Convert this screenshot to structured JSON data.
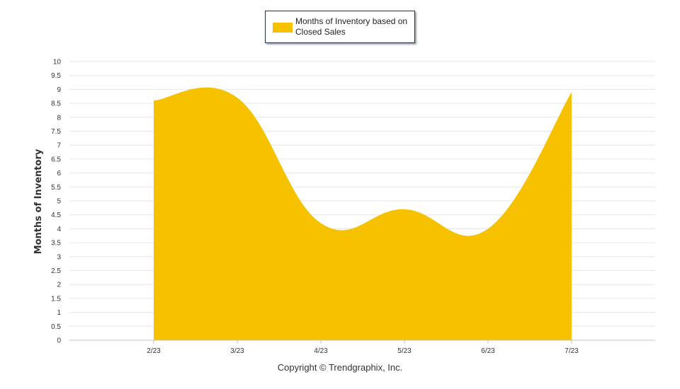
{
  "chart_data": {
    "type": "area",
    "categories": [
      "2/23",
      "3/23",
      "4/23",
      "5/23",
      "6/23",
      "7/23"
    ],
    "series": [
      {
        "name": "Months of Inventory based on Closed Sales",
        "values": [
          8.6,
          8.7,
          4.2,
          4.7,
          4.0,
          8.9
        ]
      }
    ],
    "ylabel": "Months of Inventory",
    "ylim": [
      0,
      10
    ],
    "yticks": [
      "0",
      "0.5",
      "1",
      "1.5",
      "2",
      "2.5",
      "3",
      "3.5",
      "4",
      "4.5",
      "5",
      "5.5",
      "6",
      "6.5",
      "7",
      "7.5",
      "8",
      "8.5",
      "9",
      "9.5",
      "10"
    ],
    "grid": true,
    "legend_position": "top-center",
    "colors": {
      "series": "#f6c200",
      "grid": "#e6e6e6",
      "axis": "#c0c0c0"
    }
  },
  "legend": {
    "label": "Months of Inventory based on Closed Sales"
  },
  "footer": {
    "copyright": "Copyright © Trendgraphix, Inc."
  }
}
